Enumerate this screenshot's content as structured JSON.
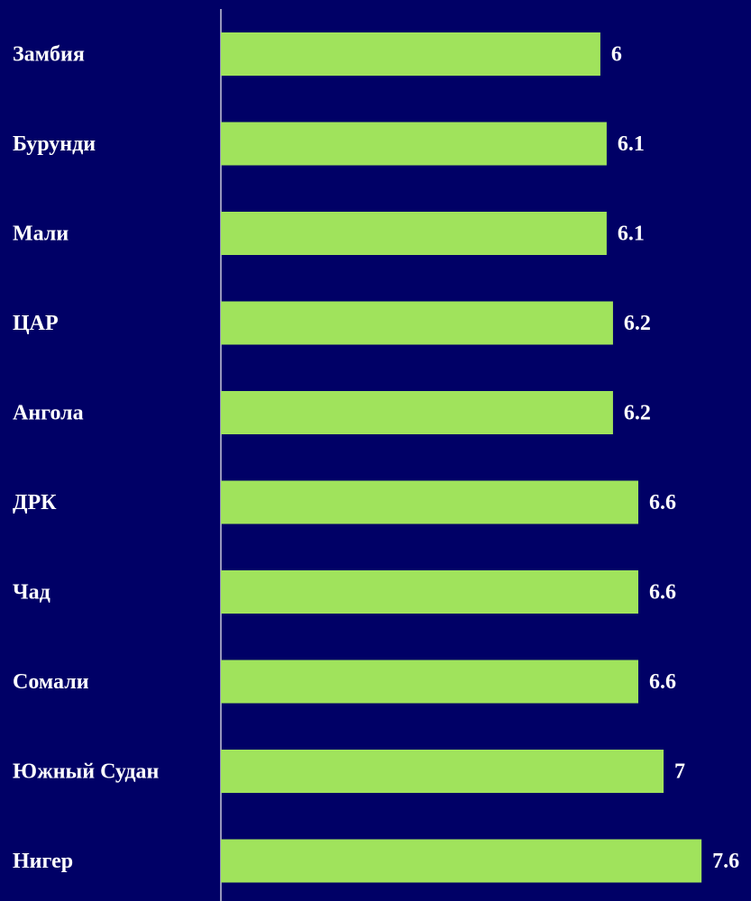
{
  "chart_data": {
    "type": "bar",
    "orientation": "horizontal",
    "categories": [
      "Замбия",
      "Бурунди",
      "Мали",
      "ЦАР",
      "Ангола",
      "ДРК",
      "Чад",
      "Сомали",
      "Южный Судан",
      "Нигер"
    ],
    "values": [
      6,
      6.1,
      6.1,
      6.2,
      6.2,
      6.6,
      6.6,
      6.6,
      7,
      7.6
    ],
    "color": "#a0e35c",
    "background": "#000066"
  }
}
